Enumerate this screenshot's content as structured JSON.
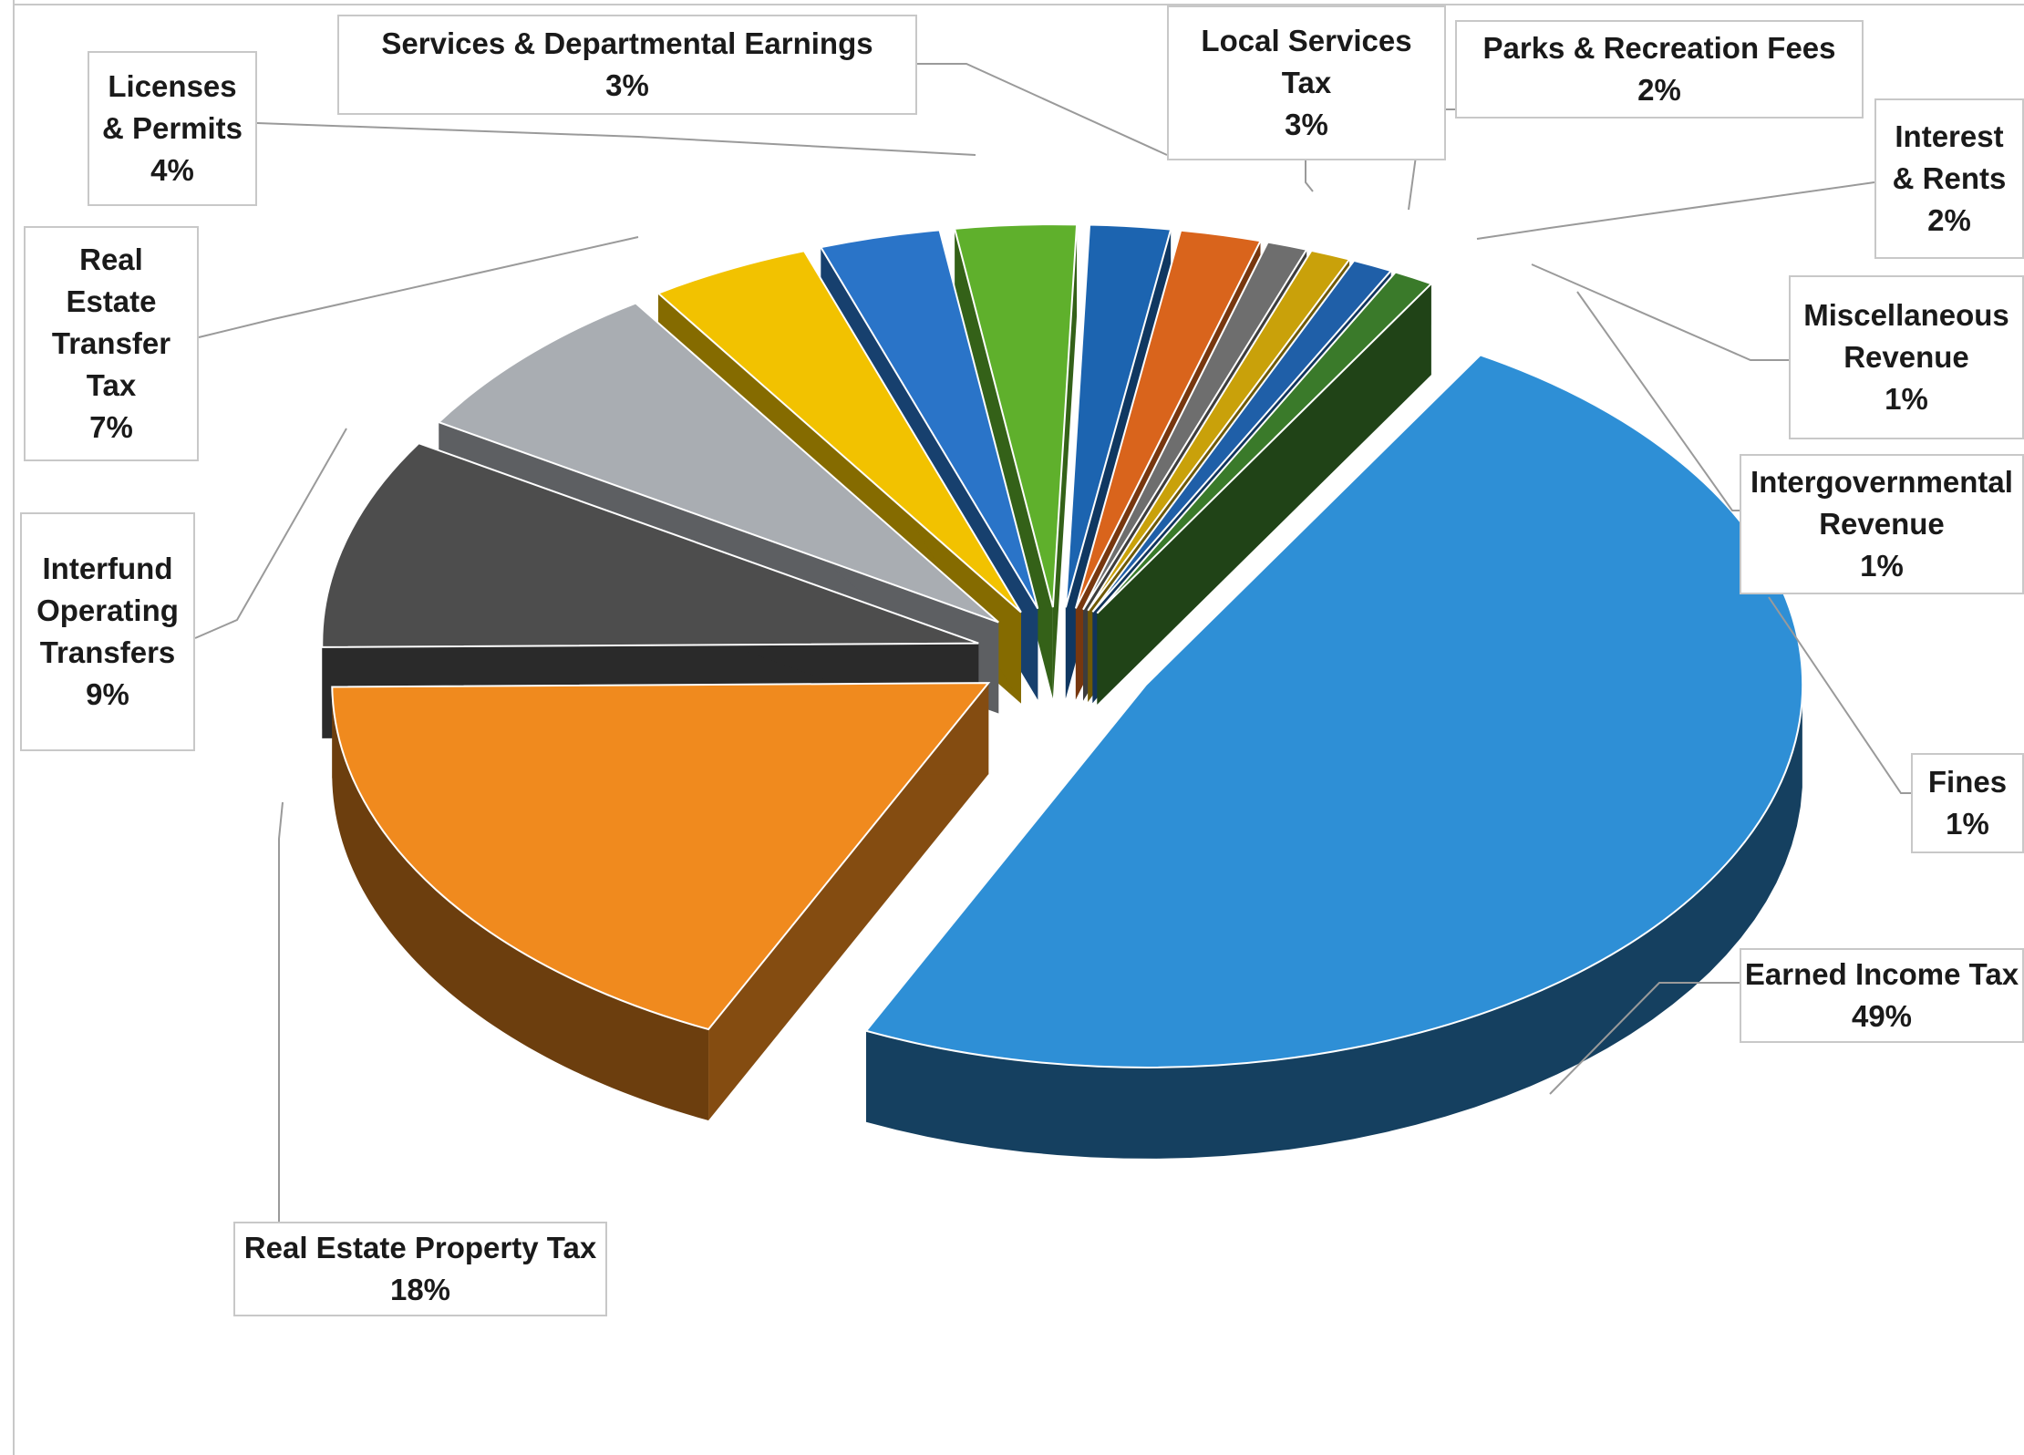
{
  "chart_data": {
    "type": "pie",
    "style": "3d-exploded",
    "slices": [
      {
        "label": "Earned Income Tax",
        "percent_label": "49%",
        "value": 49,
        "color": "#2e8fd6"
      },
      {
        "label": "Real Estate Property Tax",
        "percent_label": "18%",
        "value": 18,
        "color": "#f08a1e"
      },
      {
        "label": "Interfund\nOperating\nTransfers",
        "percent_label": "9%",
        "value": 9,
        "color": "#4d4d4d"
      },
      {
        "label": "Real\nEstate\nTransfer\nTax",
        "percent_label": "7%",
        "value": 7,
        "color": "#a9adb2"
      },
      {
        "label": "Licenses\n& Permits",
        "percent_label": "4%",
        "value": 4,
        "color": "#f2c200"
      },
      {
        "label": "Services & Departmental Earnings",
        "percent_label": "3%",
        "value": 3,
        "color": "#2a74c8"
      },
      {
        "label": "Local Services\nTax",
        "percent_label": "3%",
        "value": 3,
        "color": "#5fb02c"
      },
      {
        "label": "Parks & Recreation Fees",
        "percent_label": "2%",
        "value": 2,
        "color": "#1c64b0"
      },
      {
        "label": "Interest\n& Rents",
        "percent_label": "2%",
        "value": 2,
        "color": "#d9641c"
      },
      {
        "label": "Miscellaneous\nRevenue",
        "percent_label": "1%",
        "value": 1,
        "color": "#6e6e6e"
      },
      {
        "label": "Intergovernmental\nRevenue",
        "percent_label": "1%",
        "value": 1,
        "color": "#c9a10a"
      },
      {
        "label": "Fines",
        "percent_label": "1%",
        "value": 1,
        "color": "#1f5fa8"
      },
      {
        "label": "",
        "percent_label": "",
        "value": 1,
        "color": "#3a7a2a"
      }
    ]
  }
}
